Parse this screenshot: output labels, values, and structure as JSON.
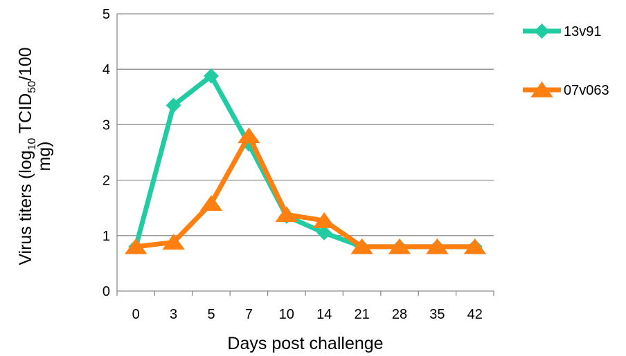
{
  "chart_data": {
    "type": "line",
    "categories": [
      "0",
      "3",
      "5",
      "7",
      "10",
      "14",
      "21",
      "28",
      "35",
      "42"
    ],
    "series": [
      {
        "name": "13v91",
        "color": "#22CCA2",
        "marker": "diamond",
        "values": [
          0.8,
          3.35,
          3.88,
          2.65,
          1.35,
          1.05,
          0.8,
          0.8,
          0.8,
          0.8
        ]
      },
      {
        "name": "07v063",
        "color": "#FF7F11",
        "marker": "triangle",
        "values": [
          0.8,
          0.88,
          1.58,
          2.8,
          1.38,
          1.27,
          0.8,
          0.8,
          0.8,
          0.8
        ]
      }
    ],
    "yticks": [
      "0",
      "1",
      "2",
      "3",
      "4",
      "5"
    ],
    "ylim": [
      0,
      5
    ],
    "grid": true,
    "legend_position": "right",
    "xlabel": "Days post challenge",
    "ylabel": {
      "main": "Virus titers (log",
      "sub1": "10",
      "mid": " TCID",
      "sub2": "50",
      "end": "/100",
      "line2": "mg)"
    }
  }
}
